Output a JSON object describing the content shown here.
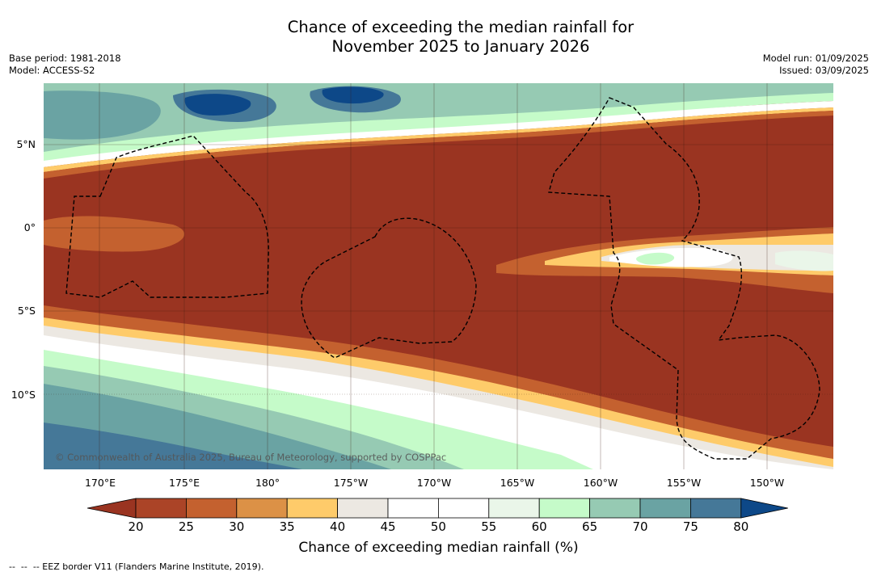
{
  "title_line1": "Chance of exceeding the median rainfall for",
  "title_line2": "November 2025 to January 2026",
  "meta_left": {
    "base_period": "Base period: 1981-2018",
    "model": "Model: ACCESS-S2"
  },
  "meta_right": {
    "model_run": "Model run: 01/09/2025",
    "issued": "Issued: 03/09/2025"
  },
  "lat_labels": [
    "5°N",
    "0°",
    "5°S",
    "10°S"
  ],
  "lon_labels": [
    "170°E",
    "175°E",
    "180°",
    "175°W",
    "170°W",
    "165°W",
    "160°W",
    "155°W",
    "150°W"
  ],
  "copyright": "© Commonwealth of Australia 2025, Bureau of Meteorology, supported by COSPPac",
  "colorbar": {
    "ticks": [
      "20",
      "25",
      "30",
      "35",
      "40",
      "45",
      "50",
      "55",
      "60",
      "65",
      "70",
      "75",
      "80"
    ],
    "colors": [
      "#9a3421",
      "#ab4427",
      "#c4612f",
      "#dc9146",
      "#fecb6a",
      "#ece8e2",
      "#ffffff",
      "#ffffff",
      "#eaf6e9",
      "#c5fbc9",
      "#96cab3",
      "#6aa3a3",
      "#457898",
      "#0d4888"
    ],
    "label": "Chance of exceeding median rainfall (%)"
  },
  "footnote": "--  --  -- EEZ border V11 (Flanders Marine Institute, 2019)."
}
